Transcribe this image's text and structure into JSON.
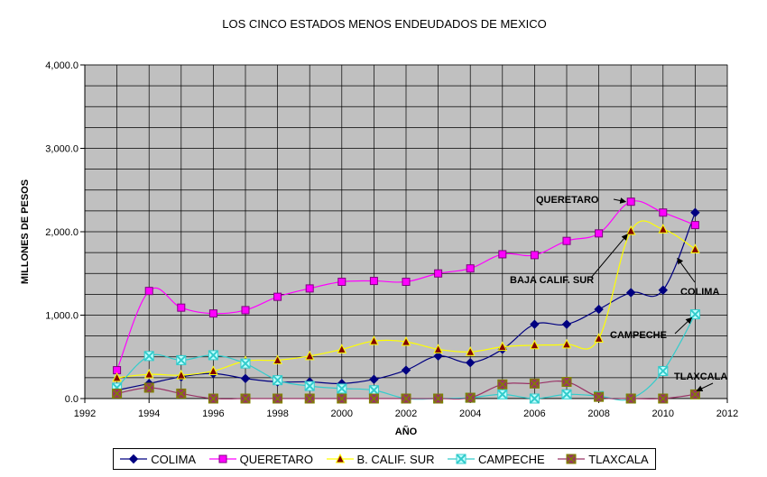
{
  "chart_data": {
    "type": "line",
    "title": "LOS CINCO ESTADOS MENOS ENDEUDADOS DE MEXICO",
    "xlabel": "AÑO",
    "ylabel": "MILLONES DE PESOS",
    "xlim": [
      1992,
      2012
    ],
    "ylim": [
      0,
      4000
    ],
    "x_ticks": [
      "1992",
      "1994",
      "1996",
      "1998",
      "2000",
      "2002",
      "2004",
      "2006",
      "2008",
      "2010",
      "2012"
    ],
    "y_ticks": [
      "0.0",
      "1,000.0",
      "2,000.0",
      "3,000.0",
      "4,000.0"
    ],
    "grid": true,
    "legend_position": "bottom",
    "x": [
      1993,
      1994,
      1995,
      1996,
      1997,
      1998,
      1999,
      2000,
      2001,
      2002,
      2003,
      2004,
      2005,
      2006,
      2007,
      2008,
      2009,
      2010,
      2011
    ],
    "series": [
      {
        "name": "COLIMA",
        "color": "#000080",
        "marker": "diamond",
        "values": [
          100,
          180,
          260,
          300,
          240,
          200,
          200,
          180,
          230,
          340,
          510,
          430,
          590,
          890,
          890,
          1070,
          1270,
          1300,
          2230
        ]
      },
      {
        "name": "QUERETARO",
        "color": "#ff00ff",
        "marker": "square",
        "values": [
          340,
          1290,
          1090,
          1020,
          1060,
          1220,
          1320,
          1400,
          1410,
          1400,
          1500,
          1560,
          1730,
          1720,
          1890,
          1980,
          2360,
          2230,
          2080
        ]
      },
      {
        "name": "B. CALIF. SUR",
        "color": "#ffff00",
        "marker": "triangle",
        "values": [
          250,
          290,
          280,
          330,
          450,
          460,
          510,
          590,
          690,
          680,
          590,
          560,
          620,
          640,
          650,
          720,
          2010,
          2030,
          1790
        ]
      },
      {
        "name": "CAMPECHE",
        "color": "#33cccc",
        "marker": "x-square",
        "values": [
          130,
          510,
          460,
          520,
          420,
          220,
          150,
          120,
          100,
          0,
          0,
          10,
          50,
          0,
          50,
          30,
          0,
          330,
          1010
        ]
      },
      {
        "name": "TLAXCALA",
        "color": "#993366",
        "marker": "x-square-dark",
        "values": [
          60,
          130,
          60,
          0,
          0,
          0,
          0,
          0,
          0,
          0,
          0,
          10,
          170,
          180,
          200,
          20,
          0,
          0,
          50
        ]
      }
    ],
    "annotations": [
      "QUERETARO",
      "BAJA CALIF. SUR",
      "COLIMA",
      "CAMPECHE",
      "TLAXCALA"
    ]
  }
}
